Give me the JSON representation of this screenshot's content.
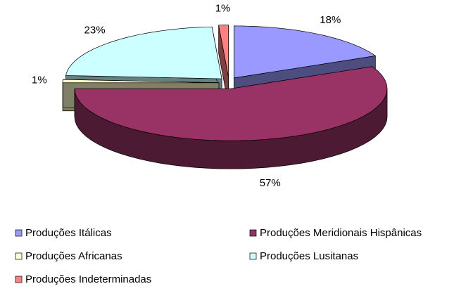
{
  "chart_data": {
    "type": "pie3d",
    "categories": [
      "Produções Itálicas",
      "Produções Meridionais Hispânicas",
      "Produções Africanas",
      "Produções Lusitanas",
      "Produções Indeterminadas"
    ],
    "values": [
      18,
      57,
      1,
      23,
      1
    ],
    "value_labels": [
      "18%",
      "57%",
      "1%",
      "23%",
      "1%"
    ],
    "colors": [
      "#9999ff",
      "#993366",
      "#ffffcc",
      "#ccffff",
      "#ff8080"
    ],
    "legend": "bottom"
  }
}
